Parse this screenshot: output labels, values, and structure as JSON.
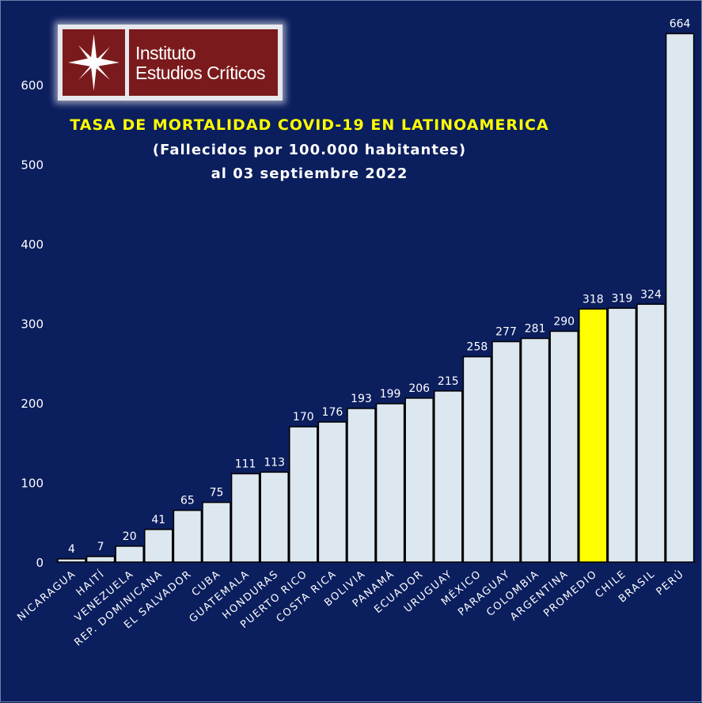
{
  "logo": {
    "line1": "Instituto",
    "line2": "Estudios Críticos",
    "icon": "compass-star-icon"
  },
  "colors": {
    "background": "#0b1e5e",
    "bar": "#dde7f0",
    "highlight": "#ffff00",
    "title": "#ffff00",
    "text": "#ffffff"
  },
  "chart_data": {
    "type": "bar",
    "title": "TASA DE MORTALIDAD COVID-19 EN LATINOAMERICA",
    "subtitle": "(Fallecidos por 100.000 habitantes)",
    "subtitle2": "al 03 septiembre 2022",
    "xlabel": "",
    "ylabel": "",
    "ylim": [
      0,
      664
    ],
    "yticks": [
      0,
      100,
      200,
      300,
      400,
      500,
      600
    ],
    "categories": [
      "NICARAGUA",
      "HAITÍ",
      "VENEZUELA",
      "REP. DOMINICANA",
      "EL SALVADOR",
      "CUBA",
      "GUATEMALA",
      "HONDURAS",
      "PUERTO RICO",
      "COSTA RICA",
      "BOLIVIA",
      "PANAMÁ",
      "ECUADOR",
      "URUGUAY",
      "MÉXICO",
      "PARAGUAY",
      "COLOMBIA",
      "ARGENTINA",
      "PROMEDIO",
      "CHILE",
      "BRASIL",
      "PERÚ"
    ],
    "values": [
      4,
      7,
      20,
      41,
      65,
      75,
      111,
      113,
      170,
      176,
      193,
      199,
      206,
      215,
      258,
      277,
      281,
      290,
      318,
      319,
      324,
      664
    ],
    "highlight": "PROMEDIO",
    "grid": false,
    "legend": "none"
  }
}
